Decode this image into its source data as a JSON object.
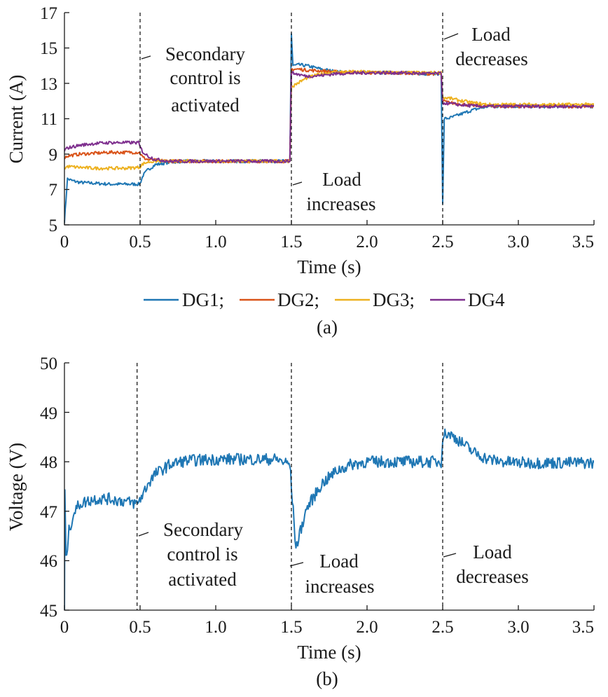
{
  "chart_data": [
    {
      "type": "line",
      "xlabel": "Time (s)",
      "ylabel": "Current (A)",
      "caption": "(a)",
      "xlim": [
        0,
        3.5
      ],
      "ylim": [
        5,
        17
      ],
      "xticks": [
        "0",
        "0.5",
        "1.0",
        "1.5",
        "2.0",
        "2.5",
        "3.0",
        "3.5"
      ],
      "yticks": [
        "5",
        "7",
        "9",
        "11",
        "13",
        "15",
        "17"
      ],
      "legend_position": "below",
      "event_times": [
        0.5,
        1.5,
        2.5
      ],
      "annotations": [
        {
          "lines": [
            "Secondary",
            "control is",
            "activated"
          ]
        },
        {
          "lines": [
            "Load",
            "increases"
          ]
        },
        {
          "lines": [
            "Load",
            "decreases"
          ]
        }
      ],
      "series": [
        {
          "name": "DG1;",
          "color": "#1f77b4",
          "x": [
            0,
            0.02,
            0.05,
            0.1,
            0.2,
            0.3,
            0.4,
            0.49,
            0.5,
            0.52,
            0.55,
            0.6,
            0.7,
            0.8,
            1.0,
            1.2,
            1.4,
            1.49,
            1.5,
            1.51,
            1.55,
            1.6,
            1.7,
            1.8,
            2.0,
            2.2,
            2.4,
            2.49,
            2.5,
            2.51,
            2.55,
            2.6,
            2.7,
            2.8,
            3.0,
            3.2,
            3.5
          ],
          "y": [
            5.2,
            7.6,
            7.5,
            7.4,
            7.35,
            7.3,
            7.3,
            7.3,
            7.35,
            7.8,
            8.1,
            8.4,
            8.55,
            8.6,
            8.6,
            8.6,
            8.6,
            8.6,
            15.8,
            14.0,
            14.05,
            14.0,
            13.8,
            13.65,
            13.6,
            13.6,
            13.55,
            13.55,
            6.2,
            11.0,
            11.05,
            11.2,
            11.5,
            11.7,
            11.7,
            11.7,
            11.7
          ]
        },
        {
          "name": "DG2;",
          "color": "#d95319",
          "x": [
            0,
            0.02,
            0.1,
            0.2,
            0.3,
            0.4,
            0.49,
            0.5,
            0.52,
            0.55,
            0.6,
            0.7,
            0.8,
            1.0,
            1.2,
            1.4,
            1.49,
            1.5,
            1.55,
            1.6,
            1.7,
            1.8,
            2.0,
            2.2,
            2.4,
            2.49,
            2.5,
            2.55,
            2.6,
            2.7,
            2.8,
            3.0,
            3.2,
            3.5
          ],
          "y": [
            8.8,
            8.9,
            9.0,
            9.05,
            9.1,
            9.1,
            9.1,
            9.05,
            8.8,
            8.7,
            8.65,
            8.6,
            8.6,
            8.6,
            8.6,
            8.6,
            8.6,
            13.8,
            13.8,
            13.75,
            13.7,
            13.65,
            13.6,
            13.6,
            13.55,
            13.55,
            12.0,
            11.9,
            11.85,
            11.75,
            11.7,
            11.7,
            11.7,
            11.7
          ]
        },
        {
          "name": "DG3;",
          "color": "#edb120",
          "x": [
            0,
            0.02,
            0.1,
            0.2,
            0.3,
            0.4,
            0.49,
            0.5,
            0.52,
            0.55,
            0.6,
            0.7,
            0.8,
            1.0,
            1.2,
            1.4,
            1.49,
            1.5,
            1.55,
            1.6,
            1.7,
            1.8,
            2.0,
            2.2,
            2.4,
            2.49,
            2.5,
            2.55,
            2.6,
            2.7,
            2.8,
            3.0,
            3.2,
            3.5
          ],
          "y": [
            8.2,
            8.3,
            8.25,
            8.2,
            8.2,
            8.2,
            8.25,
            8.3,
            8.45,
            8.55,
            8.6,
            8.6,
            8.6,
            8.6,
            8.6,
            8.6,
            8.6,
            12.8,
            13.05,
            13.3,
            13.55,
            13.65,
            13.65,
            13.6,
            13.6,
            13.6,
            12.2,
            12.15,
            12.05,
            11.9,
            11.8,
            11.8,
            11.8,
            11.8
          ]
        },
        {
          "name": "DG4",
          "color": "#7e2f8e",
          "x": [
            0,
            0.02,
            0.1,
            0.2,
            0.3,
            0.4,
            0.49,
            0.5,
            0.52,
            0.55,
            0.6,
            0.7,
            0.8,
            1.0,
            1.2,
            1.4,
            1.49,
            1.5,
            1.55,
            1.6,
            1.7,
            1.8,
            2.0,
            2.2,
            2.4,
            2.49,
            2.5,
            2.55,
            2.6,
            2.7,
            2.8,
            3.0,
            3.2,
            3.5
          ],
          "y": [
            9.2,
            9.35,
            9.5,
            9.6,
            9.65,
            9.65,
            9.65,
            9.4,
            9.1,
            8.9,
            8.7,
            8.6,
            8.6,
            8.6,
            8.6,
            8.6,
            8.6,
            13.6,
            13.5,
            13.4,
            13.45,
            13.55,
            13.6,
            13.6,
            13.55,
            13.55,
            11.9,
            11.85,
            11.8,
            11.72,
            11.7,
            11.7,
            11.7,
            11.7
          ]
        }
      ]
    },
    {
      "type": "line",
      "xlabel": "Time (s)",
      "ylabel": "Voltage (V)",
      "caption": "(b)",
      "xlim": [
        0,
        3.5
      ],
      "ylim": [
        45,
        50
      ],
      "xticks": [
        "0",
        "0.5",
        "1.0",
        "1.5",
        "2.0",
        "2.5",
        "3.0",
        "3.5"
      ],
      "yticks": [
        "45",
        "46",
        "47",
        "48",
        "49",
        "50"
      ],
      "event_times": [
        0.48,
        1.5,
        2.5
      ],
      "annotations": [
        {
          "lines": [
            "Secondary",
            "control is",
            "activated"
          ]
        },
        {
          "lines": [
            "Load",
            "increases"
          ]
        },
        {
          "lines": [
            "Load",
            "decreases"
          ]
        }
      ],
      "series": [
        {
          "color": "#1f77b4",
          "x": [
            0,
            0.003,
            0.01,
            0.03,
            0.06,
            0.1,
            0.15,
            0.2,
            0.3,
            0.4,
            0.48,
            0.52,
            0.55,
            0.6,
            0.7,
            0.8,
            1.0,
            1.2,
            1.4,
            1.49,
            1.5,
            1.53,
            1.56,
            1.6,
            1.7,
            1.8,
            1.9,
            2.0,
            2.2,
            2.4,
            2.49,
            2.5,
            2.52,
            2.55,
            2.6,
            2.7,
            2.8,
            2.9,
            3.0,
            3.2,
            3.5
          ],
          "y": [
            45.0,
            47.4,
            46.0,
            46.6,
            46.95,
            47.15,
            47.2,
            47.25,
            47.25,
            47.2,
            47.15,
            47.35,
            47.55,
            47.75,
            47.95,
            48.02,
            48.05,
            48.05,
            48.05,
            47.95,
            47.5,
            46.25,
            46.6,
            47.05,
            47.55,
            47.82,
            47.95,
            48.0,
            48.0,
            48.0,
            48.0,
            48.5,
            48.58,
            48.55,
            48.45,
            48.2,
            48.05,
            48.0,
            47.98,
            47.98,
            47.98
          ],
          "noise": 0.12
        }
      ]
    }
  ]
}
